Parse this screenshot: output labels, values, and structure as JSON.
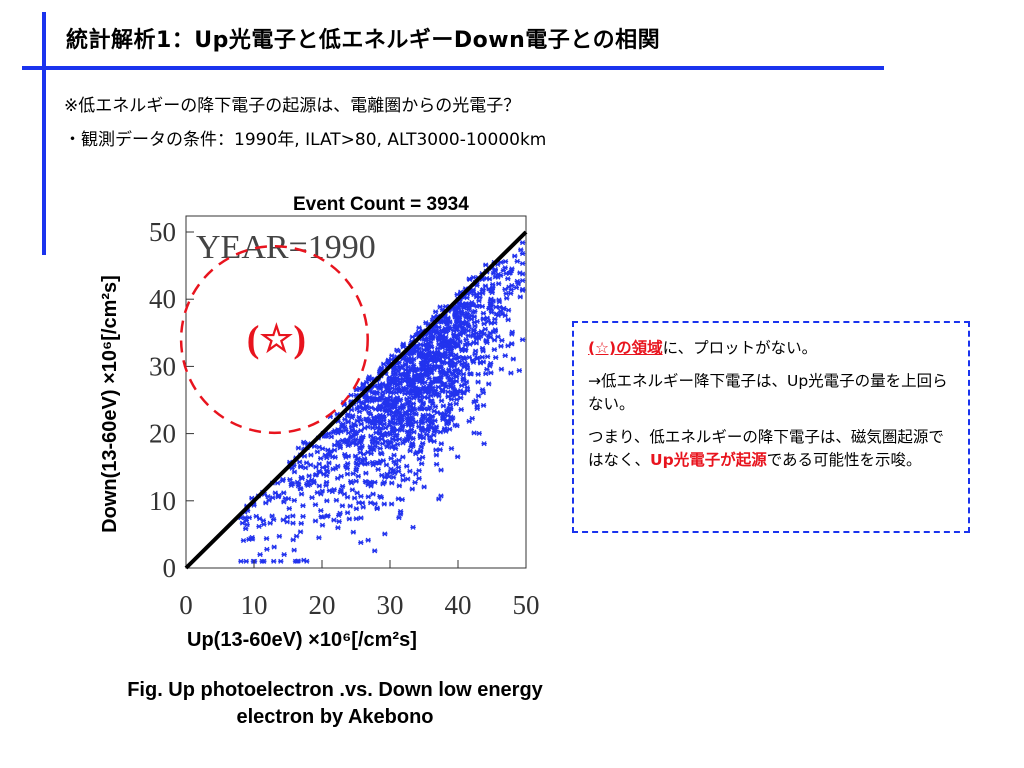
{
  "slide": {
    "title": "統計解析1：Up光電子と低エネルギーDown電子との相関",
    "subtitle_question": "※低エネルギーの降下電子の起源は、電離圏からの光電子？",
    "subtitle_conditions": "・観測データの条件：1990年, ILAT>80, ALT3000-10000km"
  },
  "figure": {
    "event_count_label": "Event Count = 3934",
    "year_label": "YEAR=1990",
    "region_marker": "(☆)",
    "x_axis_label": "Up(13-60eV) ×10⁶[/cm²s]",
    "y_axis_label": "Down(13-60eV) ×10⁶[/cm²s]",
    "caption": "Fig. Up photoelectron .vs. Down low energy electron by Akebono"
  },
  "notes": {
    "p1_highlight": "(☆)の領域",
    "p1_rest": "に、プロットがない。",
    "p2": "→低エネルギー降下電子は、Up光電子の量を上回らない。",
    "p3_before": "つまり、低エネルギーの降下電子は、磁気圏起源ではなく、",
    "p3_highlight": "Up光電子が起源",
    "p3_after": "である可能性を示唆。"
  },
  "chart_data": {
    "type": "scatter",
    "title": "Event Count = 3934",
    "annotation": "YEAR=1990",
    "xlabel": "Up(13-60eV) ×10⁶[/cm²s]",
    "ylabel": "Down(13-60eV) ×10⁶[/cm²s]",
    "xlim": [
      0,
      50
    ],
    "ylim": [
      0,
      50
    ],
    "x_ticks": [
      "0",
      "10",
      "20",
      "30",
      "40",
      "50"
    ],
    "y_ticks": [
      "0",
      "10",
      "20",
      "30",
      "40",
      "50"
    ],
    "reference_line": {
      "label": "y = x",
      "x": [
        0,
        50
      ],
      "y": [
        0,
        50
      ]
    },
    "highlight_region": {
      "label": "(☆)",
      "center": [
        13,
        34
      ],
      "radius": 14
    },
    "event_count": 3934,
    "point_color": "#2233ee",
    "line_color": "#000000",
    "region_color": "#e8141e"
  }
}
